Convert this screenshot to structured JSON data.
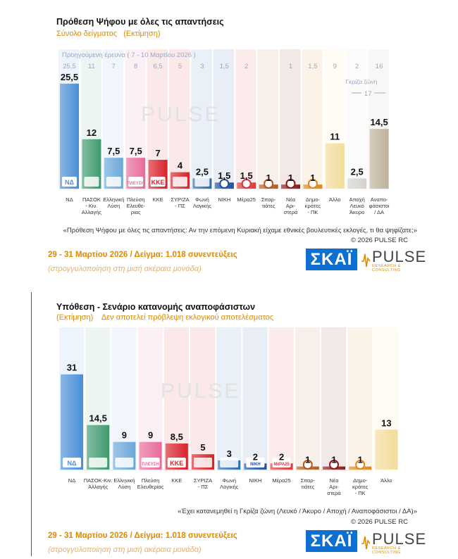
{
  "brand": {
    "skai": "ΣΚΑΪ",
    "pulse": "PULSE",
    "pulse_tag": "RESEARCH & CONSULTING"
  },
  "colors": {
    "accent_orange": "#e08a00",
    "skai_blue": "#0d6fd0"
  },
  "panel1": {
    "title": "Πρόθεση Ψήφου με όλες τις απαντήσεις",
    "subtitle": "Σύνολο δείγματος   (Εκτίμηση)",
    "previous_label": "Προηγούμενη έρευνα ( 7 - 10 Μαρτίου 2026 )",
    "grey_zone_label": "Γκρίζα ζώνη",
    "grey_zone_value": "17",
    "question": "«Πρόθεση Ψήφου με όλες τις απαντήσεις: Αν την επόμενη Κυριακή είχαμε εθνικές βουλευτικές εκλογές, τι θα ψηφίζατε;»",
    "copyright": "© 2026 PULSE RC",
    "date": "29 - 31 Μαρτίου 2026  /  Δείγμα:  1.018 συνεντεύξεις",
    "rounding": "(στρογγυλοποίηση στη μισή ακέραια μονάδα)"
  },
  "panel2": {
    "title": "Υπόθεση - Σενάριο κατανομής αναποφάσιστων",
    "subtitle": "(Εκτίμηση)    Δεν αποτελεί πρόβλεψη εκλογικού αποτελέσματος",
    "question": "«Έχει κατανεμηθεί η Γκρίζα ζώνη (Λευκό / Άκυρο / Αποχή / Αναποφάσιστοι / ΔΑ)»",
    "copyright": "© 2026 PULSE RC",
    "date": "29 - 31 Μαρτίου 2026  /  Δείγμα:  1.018 συνεντεύξεις",
    "rounding": "(στρογγυλοποίηση στη μισή ακέραια μονάδα)"
  },
  "chart_data": [
    {
      "type": "bar",
      "title": "Πρόθεση Ψήφου με όλες τις απαντήσεις",
      "ylim": [
        0,
        27
      ],
      "categories": [
        "ΝΔ",
        "ΠΑΣΟΚ - Κιν. Αλλαγής",
        "Ελληνική Λύση",
        "Πλεύση Ελευθερίας",
        "ΚΚΕ",
        "ΣΥΡΙΖΑ - ΠΣ",
        "Φωνή Λογικής",
        "ΝΙΚΗ",
        "Μέρα25",
        "Σπαρτιάτες",
        "Νέα Αριστερά",
        "Δημοκράτες - ΠΚ",
        "Άλλο",
        "Αποχή Λευκό Άκυρο",
        "Αναποφάσιστοι / ΔΑ"
      ],
      "series": [
        {
          "name": "29 - 31 Μαρτίου 2026",
          "values": [
            25.5,
            12,
            7.5,
            7.5,
            7,
            4,
            2.5,
            1.5,
            1.5,
            1,
            1,
            1,
            11,
            2.5,
            14.5
          ]
        },
        {
          "name": "Προηγούμενη έρευνα ( 7 - 10 Μαρτίου 2026 )",
          "values": [
            "25,5",
            "11",
            "7",
            "8",
            "6,5",
            "5",
            "3",
            "1,5",
            "2",
            "",
            "1",
            "1,5",
            "9",
            "2",
            "16"
          ]
        }
      ],
      "labels": [
        "25,5",
        "12",
        "7,5",
        "7,5",
        "7",
        "4",
        "2,5",
        "1,5",
        "1,5",
        "1",
        "1",
        "1",
        "11",
        "2,5",
        "14,5"
      ],
      "axis_labels": [
        "ΝΔ",
        "ΠΑΣΟΚ\n- Κιν.\nΑλλαγής",
        "Ελληνική\nΛύση",
        "Πλεύση\nΕλευθε-\nριας",
        "ΚΚΕ",
        "ΣΥΡΙΖΑ\n- ΠΣ",
        "Φωνή\nΛογικής",
        "ΝΙΚΗ",
        "Μέρα25",
        "Σπαρ-\nτιάτες",
        "Νέα\nΑρι-\nστερά",
        "Δημο-\nκράτες\n- ΠΚ",
        "Άλλο",
        "Αποχή\nΛευκό\nΆκυρο",
        "Αναπο-\nφάσιστοι\n/ ΔΑ"
      ],
      "colors": [
        "#4a8fd6",
        "#3f9a6e",
        "#6aa8d8",
        "#e86a9a",
        "#d8222a",
        "#d8222a",
        "#2a6bb0",
        "#1f4f9a",
        "#d83a3a",
        "#b05a20",
        "#8a1a1a",
        "#e0861a",
        "#f2dc9a",
        "#d4d2cc",
        "#bfb29a"
      ],
      "logos": [
        "ΝΔ",
        "",
        "",
        "ΠΛΕΥΣΗ",
        "ΚΚΕ",
        "",
        "",
        "ΝΙΚΗ",
        "ΜέΡΑ25",
        "",
        "",
        "",
        "",
        "",
        ""
      ],
      "grid": false,
      "legend": "top-left"
    },
    {
      "type": "bar",
      "title": "Υπόθεση - Σενάριο κατανομής αναποφάσιστων",
      "ylim": [
        0,
        33
      ],
      "categories": [
        "ΝΔ",
        "ΠΑΣΟΚ-Κιν. Αλλαγής",
        "Ελληνική Λύση",
        "Πλεύση Ελευθερίας",
        "ΚΚΕ",
        "ΣΥΡΙΖΑ - ΠΣ",
        "Φωνή Λογικής",
        "ΝΙΚΗ",
        "Μέρα25",
        "Σπαρτιάτες",
        "Νέα Αριστερά",
        "Δημοκράτες - ΠΚ",
        "Άλλο"
      ],
      "values": [
        31,
        14.5,
        9,
        9,
        8.5,
        5,
        3,
        2,
        2,
        1,
        1,
        1,
        13
      ],
      "labels": [
        "31",
        "14,5",
        "9",
        "9",
        "8,5",
        "5",
        "3",
        "2",
        "2",
        "1",
        "1",
        "1",
        "13"
      ],
      "axis_labels": [
        "ΝΔ",
        "ΠΑΣΟΚ-Κιν.\nΑλλαγής",
        "Ελληνική\nΛύση",
        "Πλεύση\nΕλευθερίας",
        "ΚΚΕ",
        "ΣΥΡΙΖΑ\n- ΠΣ",
        "Φωνή\nΛογικής",
        "ΝΙΚΗ",
        "Μέρα25",
        "Σπαρ-\nτιάτες",
        "Νέα\nΑρι-\nστερά",
        "Δημο-\nκράτες\n- ΠΚ",
        "Άλλο"
      ],
      "colors": [
        "#4a8fd6",
        "#3f9a6e",
        "#6aa8d8",
        "#e86a9a",
        "#d8222a",
        "#d8222a",
        "#2a6bb0",
        "#1f4f9a",
        "#d83a3a",
        "#b05a20",
        "#8a1a1a",
        "#e0861a",
        "#f2dc9a"
      ],
      "logos": [
        "ΝΔ",
        "",
        "",
        "ΠΛΕΥΣΗ",
        "ΚΚΕ",
        "",
        "",
        "ΝΙΚΗ",
        "ΜέΡΑ25",
        "",
        "",
        "",
        ""
      ],
      "grid": false,
      "legend": "none"
    }
  ]
}
